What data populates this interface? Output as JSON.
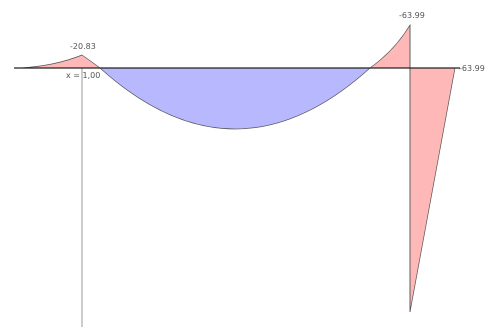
{
  "diagram": {
    "labels": {
      "left_peak": "-20.83",
      "right_peak": "-63.99",
      "right_end": "-63.99",
      "position": "x = 1,00"
    },
    "colors": {
      "negative_fill": "#ffb8b8",
      "positive_fill": "#b8b8ff",
      "outline": "#555555",
      "baseline": "#222222",
      "marker_line": "#9a9a9a"
    }
  }
}
